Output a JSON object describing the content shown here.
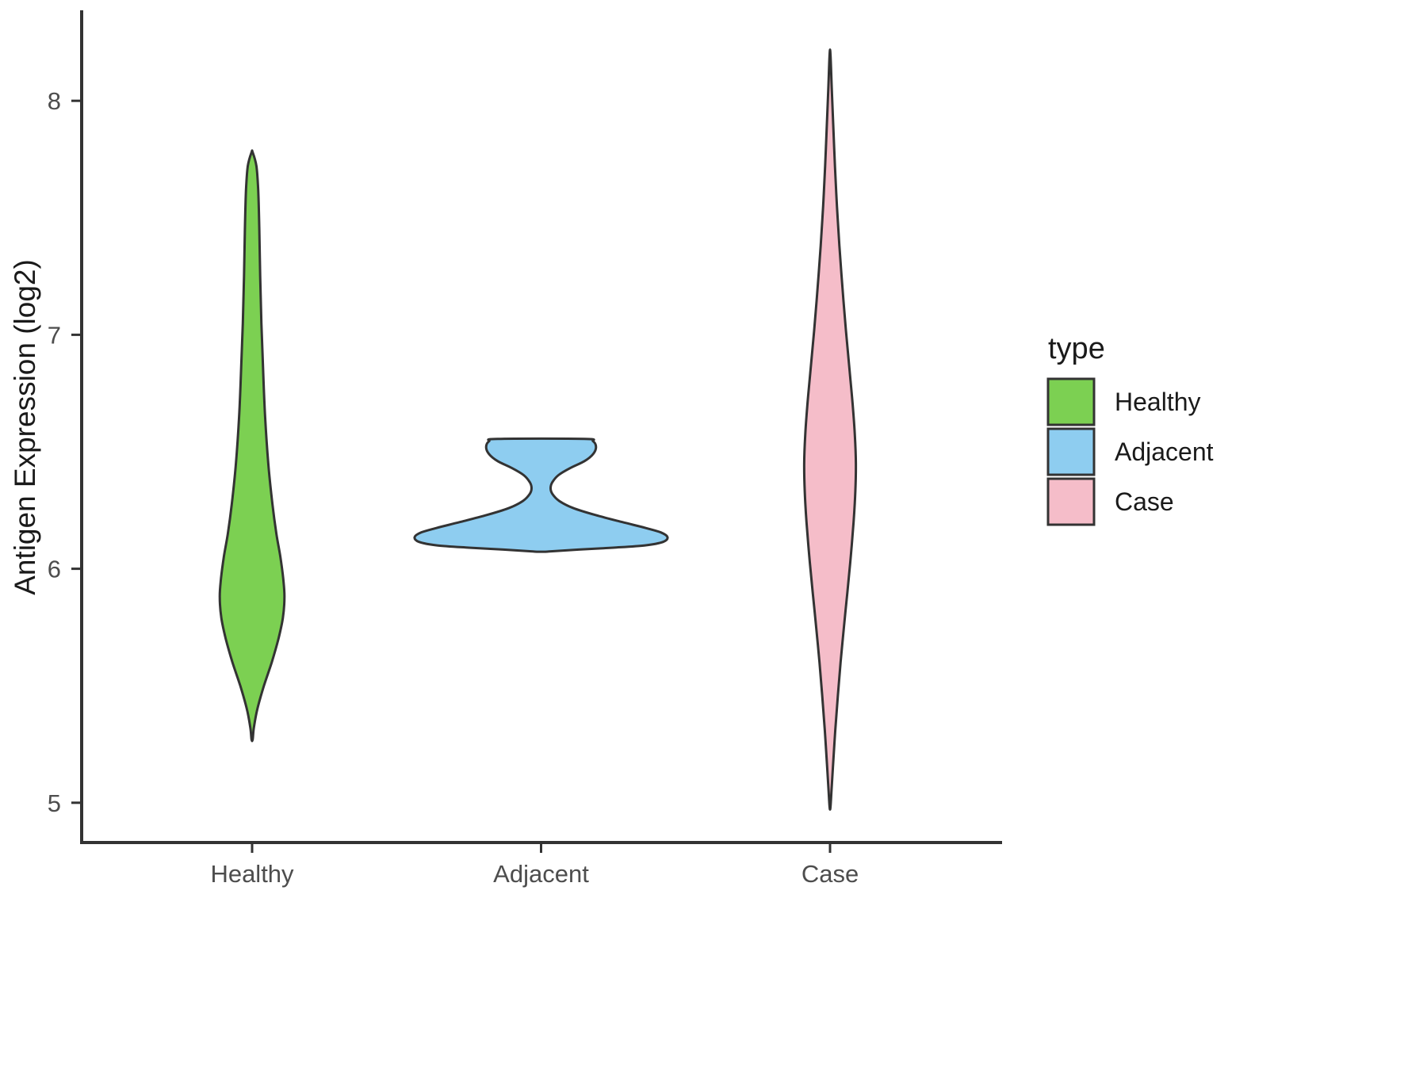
{
  "chart_data": {
    "type": "violin",
    "title": "",
    "xlabel": "",
    "ylabel": "Antigen Expression (log2)",
    "ylim": [
      4.83,
      8.38
    ],
    "yticks": [
      5,
      6,
      7,
      8
    ],
    "categories": [
      "Healthy",
      "Adjacent",
      "Case"
    ],
    "grid": false,
    "outline_color": "#333333",
    "axis_color": "#333333",
    "tick_text_color": "#4d4d4d",
    "legend": {
      "title": "type",
      "position": "right",
      "entries": [
        {
          "label": "Healthy",
          "color": "#7CD052"
        },
        {
          "label": "Adjacent",
          "color": "#8ECDF0"
        },
        {
          "label": "Case",
          "color": "#F5BDC9"
        }
      ]
    },
    "series": [
      {
        "name": "Healthy",
        "fill": "#7CD052",
        "value_range": [
          5.27,
          7.78
        ],
        "peak_value": 5.88,
        "profile": [
          [
            7.78,
            0.004
          ],
          [
            7.72,
            0.03
          ],
          [
            7.62,
            0.042
          ],
          [
            7.45,
            0.05
          ],
          [
            7.25,
            0.056
          ],
          [
            7.05,
            0.064
          ],
          [
            6.85,
            0.076
          ],
          [
            6.65,
            0.09
          ],
          [
            6.45,
            0.112
          ],
          [
            6.28,
            0.14
          ],
          [
            6.15,
            0.168
          ],
          [
            6.05,
            0.196
          ],
          [
            5.96,
            0.215
          ],
          [
            5.88,
            0.224
          ],
          [
            5.79,
            0.213
          ],
          [
            5.7,
            0.182
          ],
          [
            5.6,
            0.136
          ],
          [
            5.5,
            0.082
          ],
          [
            5.4,
            0.036
          ],
          [
            5.32,
            0.012
          ],
          [
            5.27,
            0.004
          ]
        ]
      },
      {
        "name": "Adjacent",
        "fill": "#8ECDF0",
        "value_range": [
          6.07,
          6.55
        ],
        "peak_value": 6.14,
        "profile": [
          [
            6.555,
            0.3
          ],
          [
            6.545,
            0.36
          ],
          [
            6.52,
            0.38
          ],
          [
            6.49,
            0.36
          ],
          [
            6.46,
            0.3
          ],
          [
            6.43,
            0.2
          ],
          [
            6.4,
            0.12
          ],
          [
            6.37,
            0.078
          ],
          [
            6.345,
            0.066
          ],
          [
            6.32,
            0.078
          ],
          [
            6.29,
            0.125
          ],
          [
            6.26,
            0.22
          ],
          [
            6.23,
            0.375
          ],
          [
            6.2,
            0.56
          ],
          [
            6.175,
            0.72
          ],
          [
            6.155,
            0.83
          ],
          [
            6.135,
            0.875
          ],
          [
            6.115,
            0.845
          ],
          [
            6.1,
            0.72
          ],
          [
            6.09,
            0.5
          ],
          [
            6.082,
            0.26
          ],
          [
            6.076,
            0.1
          ],
          [
            6.073,
            0.03
          ]
        ]
      },
      {
        "name": "Case",
        "fill": "#F5BDC9",
        "value_range": [
          4.98,
          8.2
        ],
        "peak_value": 6.45,
        "profile": [
          [
            8.2,
            0.003
          ],
          [
            8.05,
            0.012
          ],
          [
            7.9,
            0.022
          ],
          [
            7.72,
            0.034
          ],
          [
            7.55,
            0.048
          ],
          [
            7.38,
            0.065
          ],
          [
            7.2,
            0.086
          ],
          [
            7.02,
            0.11
          ],
          [
            6.85,
            0.135
          ],
          [
            6.7,
            0.157
          ],
          [
            6.57,
            0.172
          ],
          [
            6.45,
            0.179
          ],
          [
            6.33,
            0.175
          ],
          [
            6.2,
            0.163
          ],
          [
            6.05,
            0.143
          ],
          [
            5.9,
            0.12
          ],
          [
            5.75,
            0.096
          ],
          [
            5.6,
            0.073
          ],
          [
            5.45,
            0.053
          ],
          [
            5.3,
            0.035
          ],
          [
            5.15,
            0.02
          ],
          [
            5.05,
            0.01
          ],
          [
            4.98,
            0.003
          ]
        ]
      }
    ]
  }
}
